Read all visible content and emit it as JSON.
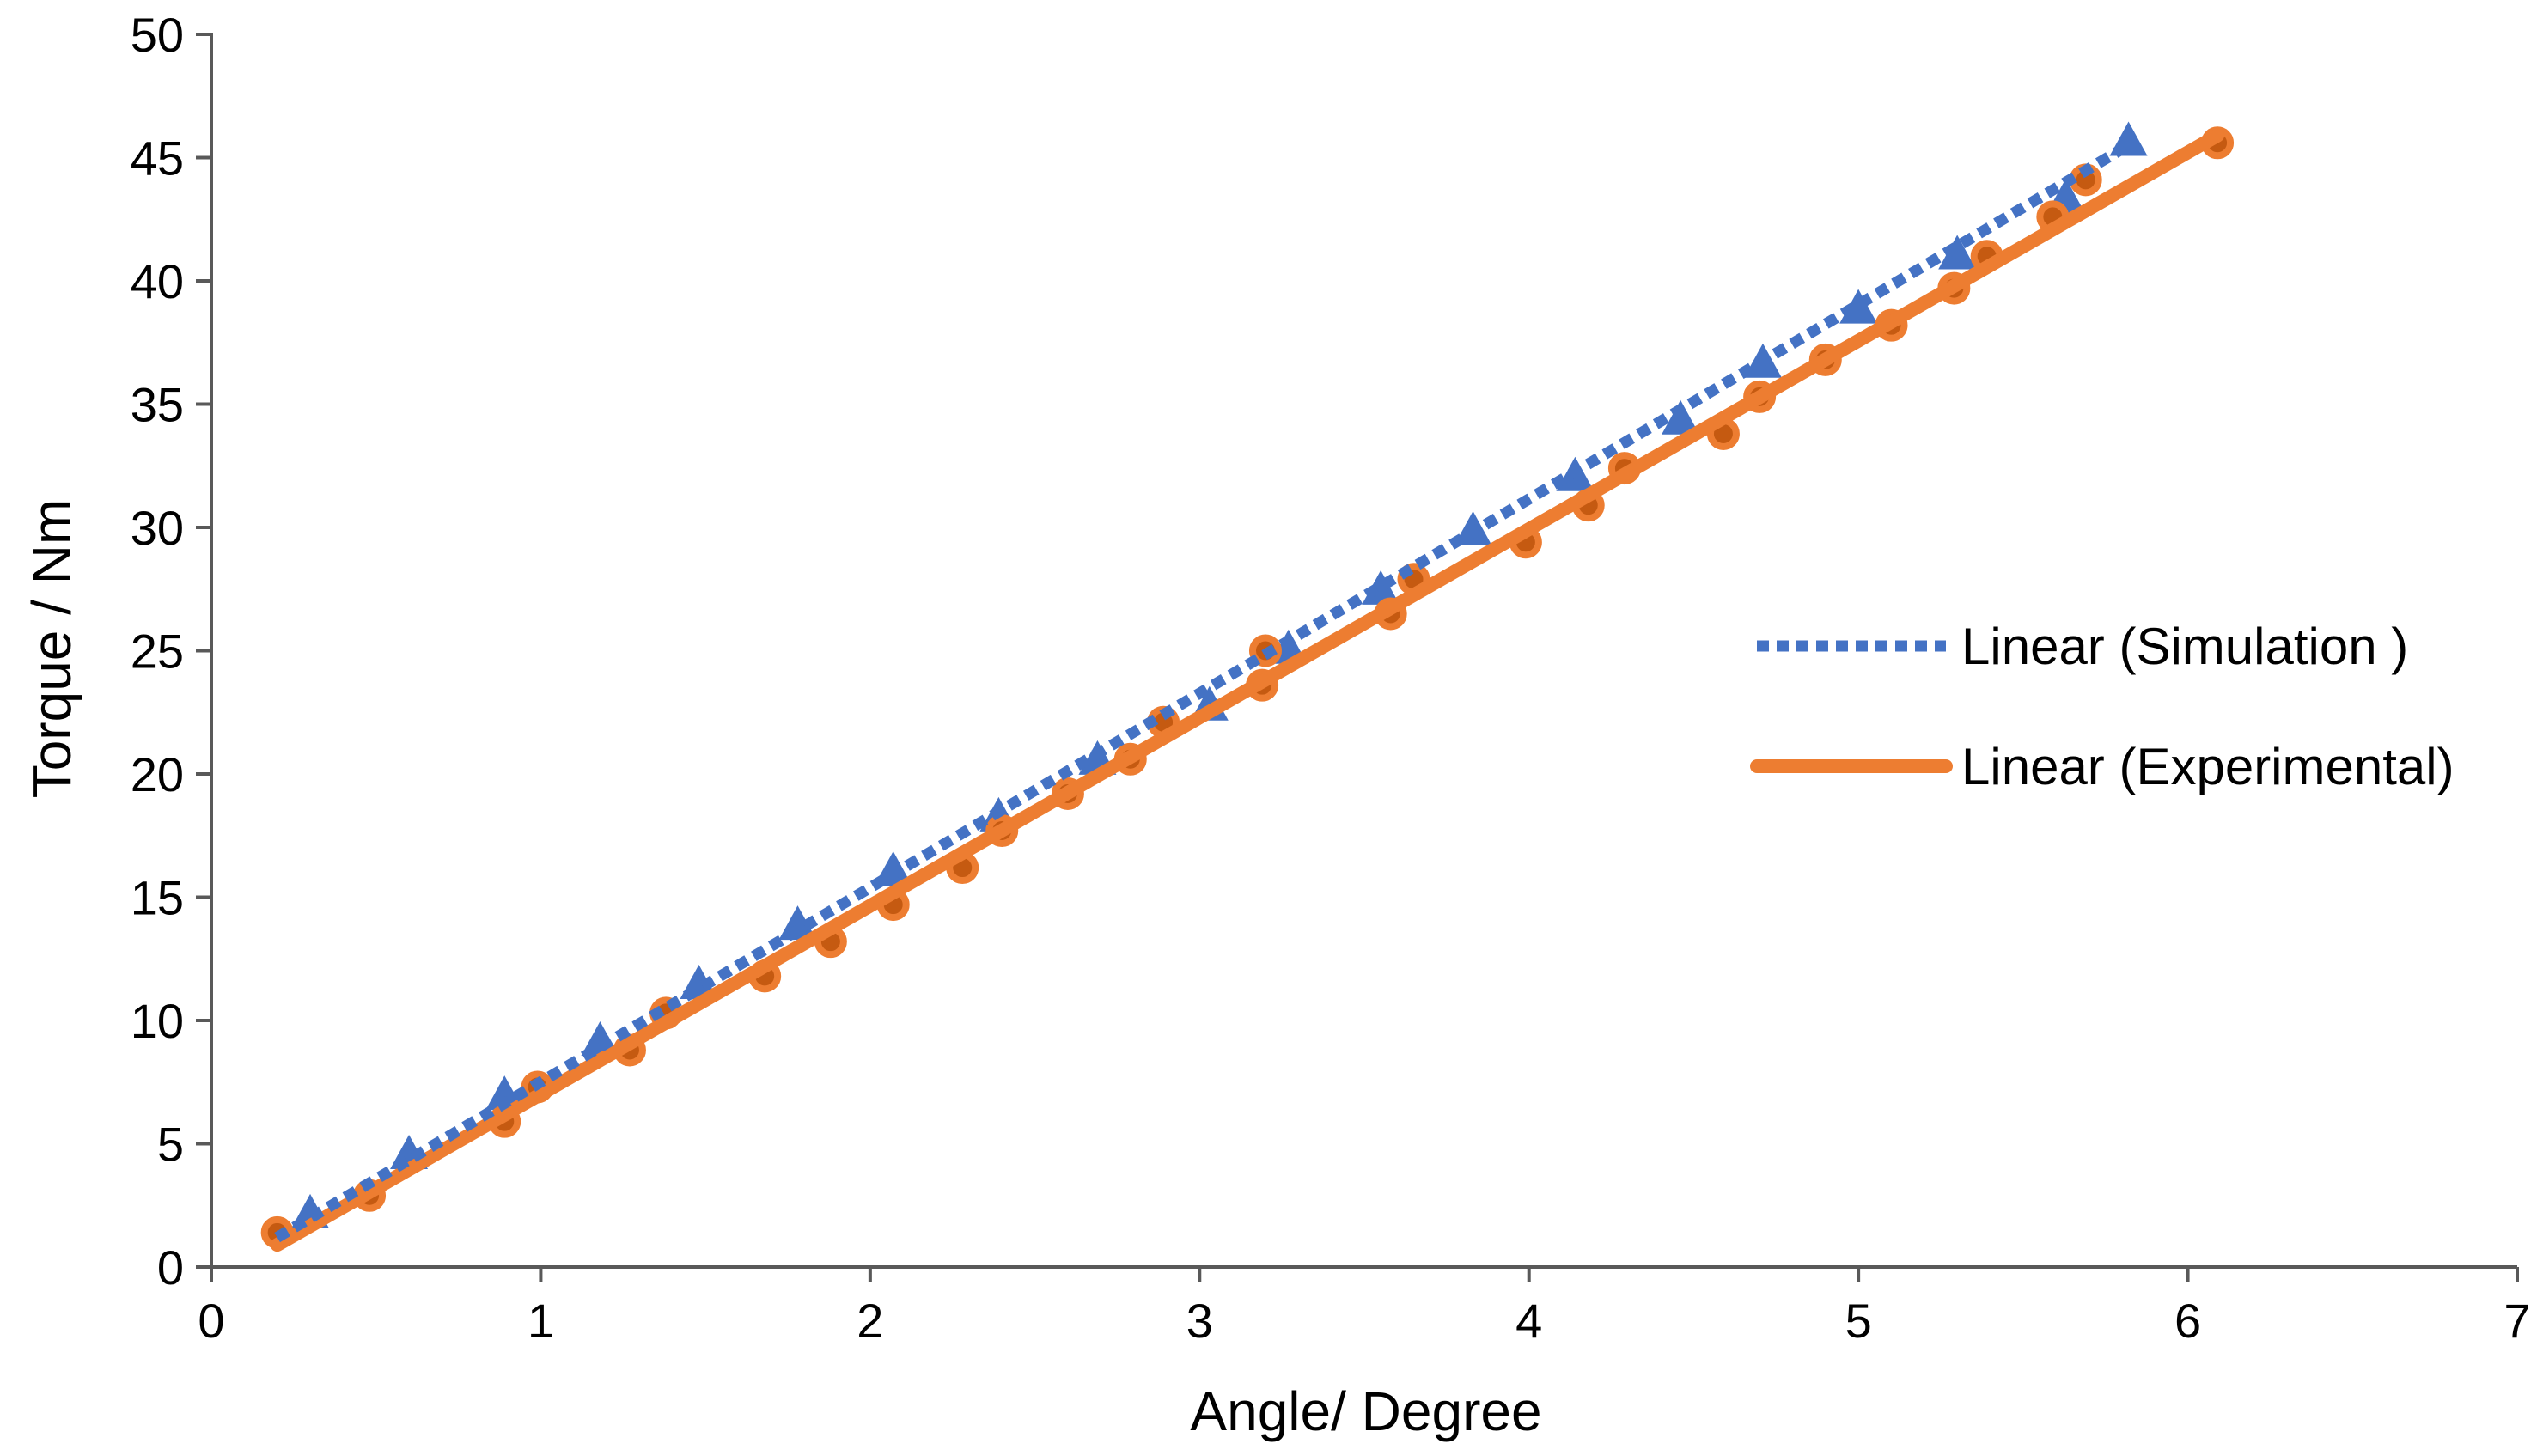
{
  "chart_data": {
    "type": "scatter",
    "title": "",
    "xlabel": "Angle/ Degree",
    "ylabel": "Torque / Nm",
    "xlim": [
      0,
      7
    ],
    "ylim": [
      0,
      50
    ],
    "xticks": [
      0,
      1,
      2,
      3,
      4,
      5,
      6,
      7
    ],
    "yticks": [
      0,
      5,
      10,
      15,
      20,
      25,
      30,
      35,
      40,
      45,
      50
    ],
    "grid": false,
    "legend_position": "right",
    "series": [
      {
        "key": "simulation",
        "marker": "triangle",
        "color": "#4472C4",
        "x": [
          0.3,
          0.6,
          0.89,
          1.18,
          1.48,
          1.78,
          2.07,
          2.39,
          2.69,
          3.03,
          3.27,
          3.55,
          3.83,
          4.14,
          4.46,
          4.71,
          5.0,
          5.3,
          5.63,
          5.82
        ],
        "y": [
          2.1,
          4.5,
          6.9,
          9.1,
          11.4,
          13.8,
          16.0,
          18.2,
          20.5,
          22.7,
          25.0,
          27.4,
          29.8,
          32.0,
          34.3,
          36.6,
          38.8,
          41.0,
          43.3,
          45.6
        ]
      },
      {
        "key": "experimental",
        "marker": "circle",
        "color": "#ED7D31",
        "x": [
          0.2,
          0.48,
          0.89,
          0.99,
          1.27,
          1.38,
          1.68,
          1.88,
          2.07,
          2.28,
          2.4,
          2.6,
          2.79,
          2.89,
          3.19,
          3.2,
          3.58,
          3.65,
          3.99,
          4.18,
          4.29,
          4.59,
          4.7,
          4.9,
          5.1,
          5.29,
          5.39,
          5.59,
          5.69,
          6.09
        ],
        "y": [
          1.4,
          2.9,
          5.9,
          7.3,
          8.8,
          10.3,
          11.8,
          13.2,
          14.7,
          16.2,
          17.7,
          19.2,
          20.6,
          22.1,
          23.6,
          25.0,
          26.5,
          27.9,
          29.4,
          30.9,
          32.4,
          33.8,
          35.3,
          36.8,
          38.2,
          39.7,
          41.0,
          42.6,
          44.1,
          45.6
        ]
      }
    ],
    "trendlines": [
      {
        "key": "sim-trend",
        "name": "Linear (Simulation )",
        "color": "#4472C4",
        "style": "dotted",
        "x": [
          0.2,
          5.82
        ],
        "y": [
          1.2,
          45.5
        ]
      },
      {
        "key": "exp-trend",
        "name": "Linear (Experimental)",
        "color": "#ED7D31",
        "style": "solid",
        "x": [
          0.2,
          6.09
        ],
        "y": [
          0.9,
          45.9
        ]
      }
    ]
  }
}
